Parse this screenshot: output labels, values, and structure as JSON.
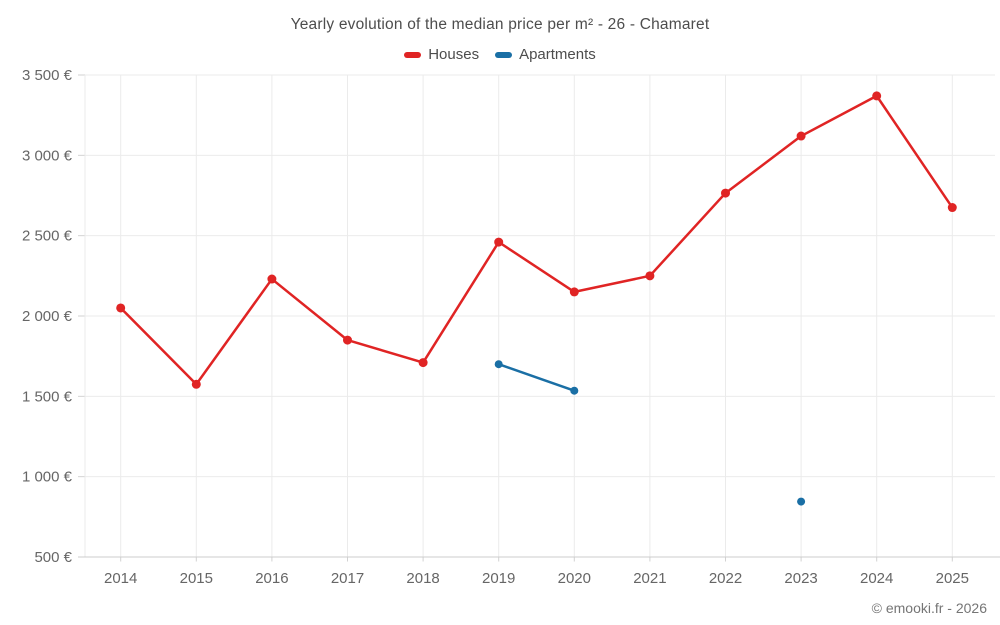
{
  "footer": {
    "credit": "© emooki.fr - 2026"
  },
  "chart_data": {
    "type": "line",
    "title": "Yearly evolution of the median price per m² - 26 - Chamaret",
    "categories": [
      "2014",
      "2015",
      "2016",
      "2017",
      "2018",
      "2019",
      "2020",
      "2021",
      "2022",
      "2023",
      "2024",
      "2025"
    ],
    "series": [
      {
        "name": "Houses",
        "color": "#e02424",
        "marker_radius": 4.5,
        "values": [
          2050,
          1575,
          2230,
          1850,
          1710,
          2460,
          2150,
          2250,
          2765,
          3120,
          3370,
          2675
        ]
      },
      {
        "name": "Apartments",
        "color": "#1a6fa5",
        "marker_radius": 4,
        "values": [
          null,
          null,
          null,
          null,
          null,
          1700,
          1535,
          null,
          null,
          845,
          null,
          null
        ]
      }
    ],
    "xlabel": "",
    "ylabel": "",
    "ylim": [
      500,
      3500
    ],
    "y_ticks": [
      {
        "value": 500,
        "label": "500 €"
      },
      {
        "value": 1000,
        "label": "1 000 €"
      },
      {
        "value": 1500,
        "label": "1 500 €"
      },
      {
        "value": 2000,
        "label": "2 000 €"
      },
      {
        "value": 2500,
        "label": "2 500 €"
      },
      {
        "value": 3000,
        "label": "3 000 €"
      },
      {
        "value": 3500,
        "label": "3 500 €"
      }
    ],
    "grid": true,
    "legend_position": "top",
    "axis_label_color": "#666666",
    "grid_color": "#ebebeb",
    "axis_line_color": "#cccccc",
    "tick_color": "#d2d2d2"
  }
}
